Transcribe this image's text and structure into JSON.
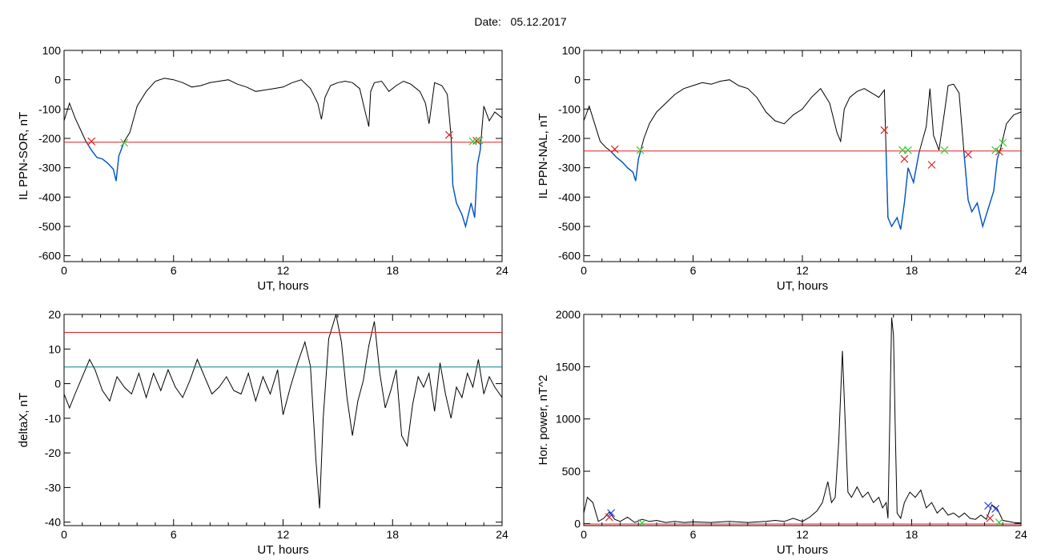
{
  "page": {
    "date_label": "Date:",
    "date_value": "05.12.2017"
  },
  "colors": {
    "axis": "#000000",
    "raw_series": "#000000",
    "selected_series": "#0055cc",
    "threshold": "#e02020",
    "secondary_threshold": "#008080",
    "start_marker": "#e02020",
    "end_marker": "#33cc33",
    "blue_marker": "#2244ee"
  },
  "chart_data": [
    {
      "id": "ppn-sor",
      "type": "line",
      "xlabel": "UT, hours",
      "ylabel": "IL PPN-SOR, nT",
      "xlim": [
        0,
        24
      ],
      "ylim": [
        -620,
        100
      ],
      "xticks": [
        0,
        6,
        12,
        18,
        24
      ],
      "yticks": [
        100,
        0,
        -100,
        -200,
        -300,
        -400,
        -500,
        -600
      ],
      "threshold": -213,
      "series": [
        {
          "x": [
            0,
            0.3,
            0.6,
            0.9,
            1.2,
            1.5,
            1.8,
            2.1,
            2.4,
            2.7,
            2.85,
            3.0,
            3.3,
            3.6,
            4.0,
            4.5,
            5.0,
            5.5,
            6.0,
            6.5,
            7.0,
            7.5,
            8.0,
            8.5,
            9.0,
            9.5,
            10.0,
            10.5,
            11.0,
            11.5,
            12.0,
            12.5,
            13.0,
            13.5,
            13.9,
            14.1,
            14.3,
            14.6,
            15.0,
            15.4,
            15.8,
            16.2,
            16.5,
            16.7,
            16.8,
            17.0,
            17.4,
            17.8,
            18.2,
            18.6,
            19.0,
            19.5,
            19.8,
            20.0,
            20.3,
            20.7,
            21.0,
            21.2,
            21.3,
            21.5,
            21.8,
            22.0,
            22.3,
            22.5,
            22.65,
            22.8,
            23.0,
            23.3,
            23.6,
            24.0
          ],
          "y": [
            -140,
            -80,
            -130,
            -170,
            -210,
            -240,
            -265,
            -270,
            -285,
            -305,
            -345,
            -260,
            -210,
            -180,
            -90,
            -40,
            -5,
            5,
            0,
            -10,
            -25,
            -20,
            -10,
            -5,
            0,
            -15,
            -25,
            -40,
            -35,
            -30,
            -25,
            -10,
            0,
            -30,
            -80,
            -135,
            -60,
            -20,
            -10,
            -5,
            -10,
            -30,
            -110,
            -160,
            -40,
            -10,
            -5,
            -40,
            -20,
            -5,
            -15,
            -40,
            -80,
            -150,
            -10,
            -20,
            -50,
            -190,
            -360,
            -420,
            -460,
            -500,
            -420,
            -470,
            -290,
            -240,
            -90,
            -140,
            -110,
            -130
          ]
        }
      ],
      "markers": {
        "red_x": [
          [
            1.5,
            -210
          ],
          [
            21.1,
            -188
          ],
          [
            22.6,
            -208
          ]
        ],
        "green_x": [
          [
            3.3,
            -215
          ],
          [
            22.4,
            -210
          ],
          [
            22.75,
            -207
          ]
        ]
      }
    },
    {
      "id": "ppn-nal",
      "type": "line",
      "xlabel": "UT, hours",
      "ylabel": "IL PPN-NAL, nT",
      "xlim": [
        0,
        24
      ],
      "ylim": [
        -620,
        100
      ],
      "xticks": [
        0,
        6,
        12,
        18,
        24
      ],
      "yticks": [
        100,
        0,
        -100,
        -200,
        -300,
        -400,
        -500,
        -600
      ],
      "threshold": -243,
      "series": [
        {
          "x": [
            0,
            0.3,
            0.6,
            0.9,
            1.2,
            1.5,
            1.8,
            2.1,
            2.4,
            2.7,
            2.85,
            3.0,
            3.3,
            3.6,
            4.0,
            4.5,
            5.0,
            5.5,
            6.0,
            6.5,
            7.0,
            7.5,
            8.0,
            8.5,
            9.0,
            9.5,
            10.0,
            10.5,
            11.0,
            11.5,
            12.0,
            12.5,
            13.0,
            13.5,
            13.9,
            14.1,
            14.3,
            14.6,
            15.0,
            15.4,
            15.8,
            16.2,
            16.5,
            16.6,
            16.7,
            16.9,
            17.2,
            17.4,
            17.6,
            17.8,
            18.1,
            18.4,
            18.8,
            19.0,
            19.2,
            19.5,
            19.8,
            20.0,
            20.3,
            20.6,
            20.9,
            21.1,
            21.3,
            21.6,
            21.9,
            22.2,
            22.5,
            22.7,
            22.9,
            23.2,
            23.6,
            24.0
          ],
          "y": [
            -140,
            -90,
            -150,
            -210,
            -230,
            -245,
            -265,
            -280,
            -300,
            -315,
            -345,
            -270,
            -200,
            -150,
            -110,
            -80,
            -50,
            -30,
            -20,
            -10,
            -15,
            -5,
            0,
            -20,
            -30,
            -60,
            -110,
            -140,
            -150,
            -120,
            -100,
            -60,
            -30,
            -80,
            -180,
            -210,
            -100,
            -60,
            -40,
            -30,
            -45,
            -60,
            -35,
            -260,
            -470,
            -500,
            -470,
            -510,
            -420,
            -300,
            -350,
            -250,
            -160,
            -30,
            -190,
            -240,
            -110,
            -20,
            -15,
            -45,
            -270,
            -410,
            -450,
            -420,
            -500,
            -440,
            -380,
            -270,
            -230,
            -150,
            -120,
            -110
          ]
        }
      ],
      "markers": {
        "red_x": [
          [
            1.7,
            -237
          ],
          [
            16.5,
            -172
          ],
          [
            17.6,
            -270
          ],
          [
            19.1,
            -290
          ],
          [
            21.1,
            -255
          ],
          [
            22.8,
            -245
          ]
        ],
        "green_x": [
          [
            3.1,
            -240
          ],
          [
            17.5,
            -240
          ],
          [
            17.8,
            -240
          ],
          [
            19.8,
            -240
          ],
          [
            22.6,
            -240
          ],
          [
            23.0,
            -215
          ]
        ]
      }
    },
    {
      "id": "deltax",
      "type": "line",
      "xlabel": "UT, hours",
      "ylabel": "deltaX, nT",
      "xlim": [
        0,
        24
      ],
      "ylim": [
        -41,
        20
      ],
      "xticks": [
        0,
        6,
        12,
        18,
        24
      ],
      "yticks": [
        20,
        10,
        0,
        -10,
        -20,
        -30,
        -40
      ],
      "threshold": 14.8,
      "secondary_threshold": 4.8,
      "series": [
        {
          "x": [
            0,
            0.3,
            0.6,
            1.0,
            1.4,
            1.7,
            2.1,
            2.5,
            2.9,
            3.3,
            3.7,
            4.1,
            4.5,
            4.9,
            5.3,
            5.7,
            6.1,
            6.5,
            6.9,
            7.3,
            7.7,
            8.1,
            8.5,
            8.9,
            9.3,
            9.7,
            10.1,
            10.5,
            10.9,
            11.3,
            11.7,
            12.0,
            12.4,
            12.8,
            13.2,
            13.5,
            13.8,
            14.0,
            14.2,
            14.5,
            14.9,
            15.2,
            15.5,
            15.8,
            16.1,
            16.4,
            16.7,
            17.0,
            17.3,
            17.6,
            17.9,
            18.2,
            18.5,
            18.8,
            19.1,
            19.4,
            19.7,
            20.0,
            20.3,
            20.6,
            20.9,
            21.2,
            21.5,
            21.8,
            22.1,
            22.4,
            22.7,
            23.0,
            23.3,
            23.6,
            24.0
          ],
          "y": [
            -3,
            -7,
            -3,
            2,
            7,
            4,
            -2,
            -5,
            2,
            -1,
            -3,
            3,
            -4,
            3,
            -2,
            4,
            -1,
            -4,
            1,
            7,
            2,
            -3,
            -1,
            2,
            -2,
            -3,
            3,
            -5,
            2,
            -3,
            4,
            -9,
            -1,
            6,
            12,
            5,
            -22,
            -36,
            -10,
            13,
            20,
            12,
            -4,
            -15,
            -5,
            1,
            11,
            18,
            3,
            -7,
            -2,
            4,
            -15,
            -18,
            -6,
            2,
            -1,
            3,
            -8,
            6,
            -3,
            -10,
            -1,
            -4,
            3,
            -1,
            7,
            -3,
            2,
            -1,
            -4
          ]
        }
      ]
    },
    {
      "id": "hor-power",
      "type": "line",
      "xlabel": "UT, hours",
      "ylabel": "Hor. power, nT^2",
      "xlim": [
        0,
        24
      ],
      "ylim": [
        -20,
        2000
      ],
      "xticks": [
        0,
        6,
        12,
        18,
        24
      ],
      "yticks": [
        0,
        500,
        1000,
        1500,
        2000
      ],
      "threshold": -5,
      "series": [
        {
          "x": [
            0,
            0.2,
            0.5,
            0.8,
            1.1,
            1.4,
            1.7,
            2.0,
            2.4,
            2.8,
            3.2,
            3.6,
            4.0,
            4.5,
            5.0,
            5.5,
            6.0,
            7.0,
            8.0,
            9.0,
            10.0,
            10.5,
            11.0,
            11.5,
            12.0,
            12.4,
            12.8,
            13.1,
            13.4,
            13.6,
            13.8,
            14.0,
            14.2,
            14.3,
            14.5,
            14.7,
            15.0,
            15.3,
            15.6,
            15.9,
            16.2,
            16.4,
            16.6,
            16.7,
            16.8,
            16.9,
            17.0,
            17.1,
            17.2,
            17.4,
            17.6,
            17.9,
            18.2,
            18.5,
            18.8,
            19.1,
            19.4,
            19.7,
            20.0,
            20.3,
            20.6,
            20.9,
            21.2,
            21.5,
            21.8,
            22.1,
            22.4,
            22.7,
            23.0,
            23.3,
            23.6,
            24.0
          ],
          "y": [
            100,
            250,
            200,
            20,
            50,
            110,
            40,
            20,
            60,
            10,
            40,
            20,
            30,
            10,
            20,
            10,
            15,
            10,
            20,
            10,
            20,
            30,
            20,
            50,
            20,
            60,
            120,
            200,
            400,
            200,
            250,
            800,
            1650,
            1200,
            300,
            250,
            350,
            250,
            300,
            200,
            250,
            150,
            200,
            50,
            1000,
            1970,
            1800,
            900,
            100,
            50,
            200,
            300,
            250,
            320,
            150,
            200,
            100,
            150,
            80,
            100,
            60,
            100,
            50,
            40,
            80,
            40,
            180,
            140,
            30,
            20,
            10,
            5
          ]
        }
      ],
      "markers": {
        "red_x": [
          [
            1.4,
            60
          ],
          [
            22.3,
            50
          ]
        ],
        "green_x": [
          [
            3.2,
            5
          ],
          [
            22.8,
            10
          ]
        ],
        "blue_x": [
          [
            1.5,
            100
          ],
          [
            22.2,
            170
          ],
          [
            22.6,
            140
          ]
        ]
      }
    }
  ]
}
